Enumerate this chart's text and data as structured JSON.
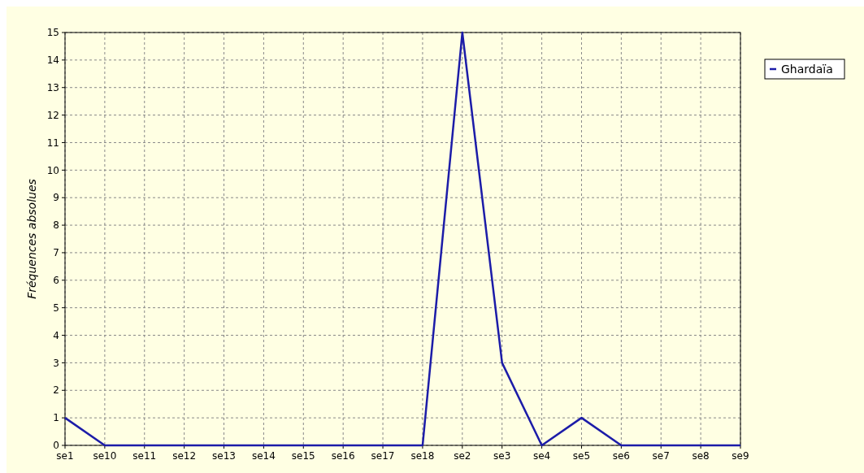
{
  "chart_data": {
    "type": "line",
    "ylabel": "Fréquences absolues",
    "categories": [
      "se1",
      "se10",
      "se11",
      "se12",
      "se13",
      "se14",
      "se15",
      "se16",
      "se17",
      "se18",
      "se2",
      "se3",
      "se4",
      "se5",
      "se6",
      "se7",
      "se8",
      "se9"
    ],
    "series": [
      {
        "name": "Ghardaïa",
        "color": "#1c1ca8",
        "values": [
          1,
          0,
          0,
          0,
          0,
          0,
          0,
          0,
          0,
          0,
          15,
          3,
          0,
          1,
          0,
          0,
          0,
          0
        ]
      }
    ],
    "ylim": [
      0,
      15
    ],
    "yticks": [
      0,
      1,
      2,
      3,
      4,
      5,
      6,
      7,
      8,
      9,
      10,
      11,
      12,
      13,
      14,
      15
    ],
    "grid": true,
    "legend": "top right",
    "marker": "none",
    "line_style": "solid"
  }
}
